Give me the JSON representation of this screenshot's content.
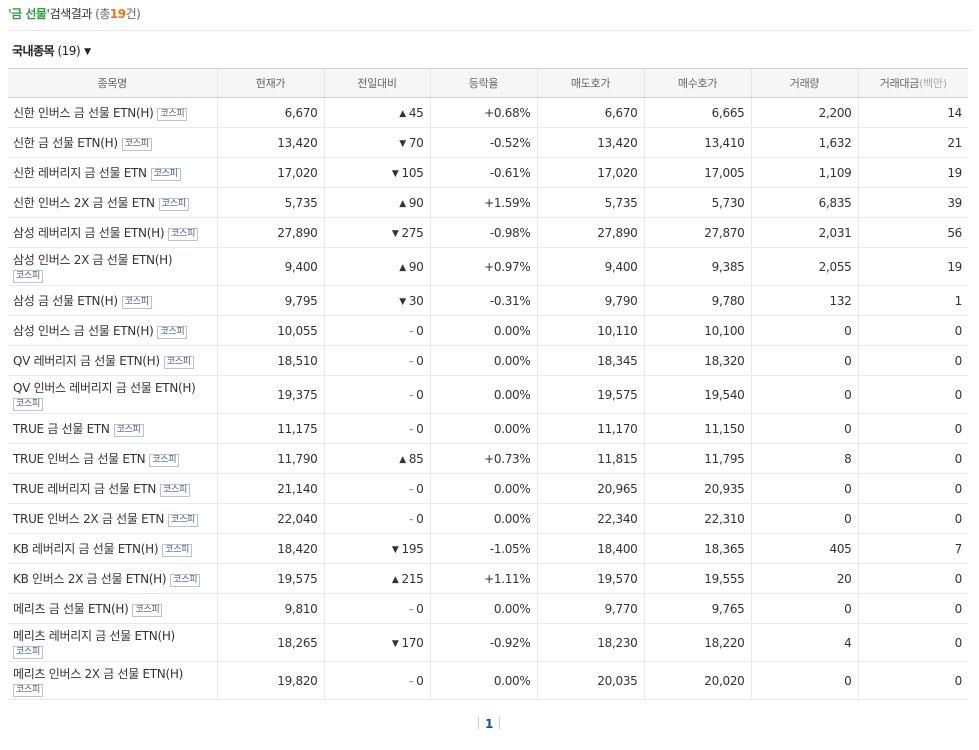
{
  "search": {
    "keyword": "'금 선물'",
    "result_label": "검색결과",
    "count_prefix": " (총",
    "count": "19",
    "count_suffix": "건)"
  },
  "section": {
    "title": "국내종목",
    "count": " (19)",
    "icon": "chevron-down-icon"
  },
  "columns": [
    "종목명",
    "현재가",
    "전일대비",
    "등락율",
    "매도호가",
    "매수호가",
    "거래량",
    "거래대금",
    "(백만)"
  ],
  "market_badge": "코스피",
  "colors": {
    "up": "#e22020",
    "down": "#1561d6",
    "keyword": "#2e9d3f",
    "count": "#f2700d"
  },
  "rows": [
    {
      "name": "신한 인버스 금 선물 ETN(H)",
      "price": "6,670",
      "dir": "up",
      "change": "45",
      "rate": "+0.68%",
      "ask": "6,670",
      "bid": "6,665",
      "volume": "2,200",
      "amount": "14"
    },
    {
      "name": "신한 금 선물 ETN(H)",
      "price": "13,420",
      "dir": "down",
      "change": "70",
      "rate": "-0.52%",
      "ask": "13,420",
      "bid": "13,410",
      "volume": "1,632",
      "amount": "21"
    },
    {
      "name": "신한 레버리지 금 선물 ETN",
      "price": "17,020",
      "dir": "down",
      "change": "105",
      "rate": "-0.61%",
      "ask": "17,020",
      "bid": "17,005",
      "volume": "1,109",
      "amount": "19"
    },
    {
      "name": "신한 인버스 2X 금 선물 ETN",
      "price": "5,735",
      "dir": "up",
      "change": "90",
      "rate": "+1.59%",
      "ask": "5,735",
      "bid": "5,730",
      "volume": "6,835",
      "amount": "39"
    },
    {
      "name": "삼성 레버리지 금 선물 ETN(H)",
      "price": "27,890",
      "dir": "down",
      "change": "275",
      "rate": "-0.98%",
      "ask": "27,890",
      "bid": "27,870",
      "volume": "2,031",
      "amount": "56"
    },
    {
      "name": "삼성 인버스 2X 금 선물 ETN(H)",
      "price": "9,400",
      "dir": "up",
      "change": "90",
      "rate": "+0.97%",
      "ask": "9,400",
      "bid": "9,385",
      "volume": "2,055",
      "amount": "19"
    },
    {
      "name": "삼성 금 선물 ETN(H)",
      "price": "9,795",
      "dir": "down",
      "change": "30",
      "rate": "-0.31%",
      "ask": "9,790",
      "bid": "9,780",
      "volume": "132",
      "amount": "1"
    },
    {
      "name": "삼성 인버스 금 선물 ETN(H)",
      "price": "10,055",
      "dir": "flat",
      "change": "0",
      "rate": "0.00%",
      "ask": "10,110",
      "bid": "10,100",
      "volume": "0",
      "amount": "0"
    },
    {
      "name": "QV 레버리지 금 선물 ETN(H)",
      "price": "18,510",
      "dir": "flat",
      "change": "0",
      "rate": "0.00%",
      "ask": "18,345",
      "bid": "18,320",
      "volume": "0",
      "amount": "0"
    },
    {
      "name": "QV 인버스 레버리지 금 선물 ETN(H)",
      "price": "19,375",
      "dir": "flat",
      "change": "0",
      "rate": "0.00%",
      "ask": "19,575",
      "bid": "19,540",
      "volume": "0",
      "amount": "0"
    },
    {
      "name": "TRUE 금 선물 ETN",
      "price": "11,175",
      "dir": "flat",
      "change": "0",
      "rate": "0.00%",
      "ask": "11,170",
      "bid": "11,150",
      "volume": "0",
      "amount": "0"
    },
    {
      "name": "TRUE 인버스 금 선물 ETN",
      "price": "11,790",
      "dir": "up",
      "change": "85",
      "rate": "+0.73%",
      "ask": "11,815",
      "bid": "11,795",
      "volume": "8",
      "amount": "0"
    },
    {
      "name": "TRUE 레버리지 금 선물 ETN",
      "price": "21,140",
      "dir": "flat",
      "change": "0",
      "rate": "0.00%",
      "ask": "20,965",
      "bid": "20,935",
      "volume": "0",
      "amount": "0"
    },
    {
      "name": "TRUE 인버스 2X 금 선물 ETN",
      "price": "22,040",
      "dir": "flat",
      "change": "0",
      "rate": "0.00%",
      "ask": "22,340",
      "bid": "22,310",
      "volume": "0",
      "amount": "0"
    },
    {
      "name": "KB 레버리지 금 선물 ETN(H)",
      "price": "18,420",
      "dir": "down",
      "change": "195",
      "rate": "-1.05%",
      "ask": "18,400",
      "bid": "18,365",
      "volume": "405",
      "amount": "7"
    },
    {
      "name": "KB 인버스 2X 금 선물 ETN(H)",
      "price": "19,575",
      "dir": "up",
      "change": "215",
      "rate": "+1.11%",
      "ask": "19,570",
      "bid": "19,555",
      "volume": "20",
      "amount": "0"
    },
    {
      "name": "메리츠 금 선물 ETN(H)",
      "price": "9,810",
      "dir": "flat",
      "change": "0",
      "rate": "0.00%",
      "ask": "9,770",
      "bid": "9,765",
      "volume": "0",
      "amount": "0"
    },
    {
      "name": "메리츠 레버리지 금 선물 ETN(H)",
      "price": "18,265",
      "dir": "down",
      "change": "170",
      "rate": "-0.92%",
      "ask": "18,230",
      "bid": "18,220",
      "volume": "4",
      "amount": "0"
    },
    {
      "name": "메리츠 인버스 2X 금 선물 ETN(H)",
      "price": "19,820",
      "dir": "flat",
      "change": "0",
      "rate": "0.00%",
      "ask": "20,035",
      "bid": "20,020",
      "volume": "0",
      "amount": "0"
    }
  ],
  "pagination": {
    "pages": [
      "1"
    ]
  }
}
